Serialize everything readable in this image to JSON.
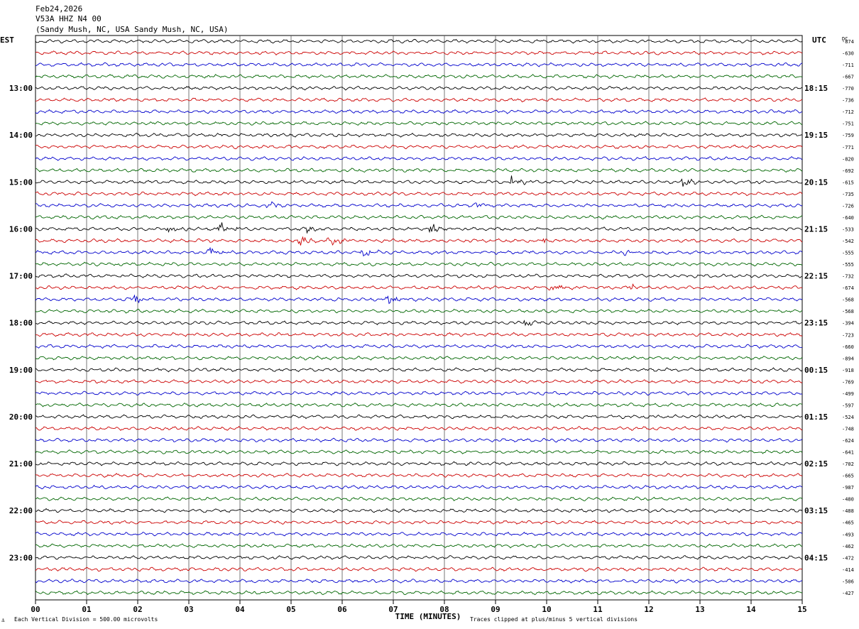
{
  "chart_data": {
    "type": "line",
    "header": {
      "date": "Feb24,2026",
      "station": "V53A HHZ N4 00",
      "location": "(Sandy Mush, NC, USA Sandy Mush, NC, USA)"
    },
    "left_tz": "EST",
    "right_tz": "UTC",
    "dc_label": "DC",
    "left_hour_labels": [
      "13:00",
      "14:00",
      "15:00",
      "16:00",
      "17:00",
      "18:00",
      "19:00",
      "20:00",
      "21:00",
      "22:00",
      "23:00"
    ],
    "right_hour_labels": [
      "18:15",
      "19:15",
      "20:15",
      "21:15",
      "22:15",
      "23:15",
      "00:15",
      "01:15",
      "02:15",
      "03:15",
      "04:15"
    ],
    "x_ticks": [
      "00",
      "01",
      "02",
      "03",
      "04",
      "05",
      "06",
      "07",
      "08",
      "09",
      "10",
      "11",
      "12",
      "13",
      "14",
      "15"
    ],
    "x_range": [
      0,
      15
    ],
    "xlabel": "TIME (MINUTES)",
    "footer_left": "Each Vertical Division =  500.00 microvolts",
    "footer_right": "Traces clipped at plus/minus 5 vertical divisions",
    "trace_colors": [
      "#000000",
      "#cc0000",
      "#0000cc",
      "#006600"
    ],
    "dc_offsets": [
      -874,
      -630,
      -711,
      -667,
      -770,
      -736,
      -712,
      -751,
      -759,
      -771,
      -820,
      -692,
      -615,
      -735,
      -726,
      -640,
      -533,
      -542,
      -555,
      -555,
      -732,
      -674,
      -568,
      -568,
      -394,
      -723,
      -660,
      -894,
      -918,
      -769,
      -499,
      -597,
      -524,
      -748,
      -624,
      -641,
      -702,
      -665,
      -987,
      -480,
      -488,
      -465,
      -493,
      -462,
      -472,
      -414,
      -506,
      -427
    ],
    "events": [
      {
        "trace": 12,
        "minute": 9.3,
        "amp": 9
      },
      {
        "trace": 12,
        "minute": 12.65,
        "amp": 11
      },
      {
        "trace": 14,
        "minute": 4.55,
        "amp": 6
      },
      {
        "trace": 14,
        "minute": 8.6,
        "amp": 8
      },
      {
        "trace": 16,
        "minute": 2.6,
        "amp": 9
      },
      {
        "trace": 16,
        "minute": 3.6,
        "amp": 12
      },
      {
        "trace": 16,
        "minute": 5.3,
        "amp": 7
      },
      {
        "trace": 16,
        "minute": 7.7,
        "amp": 9
      },
      {
        "trace": 17,
        "minute": 5.15,
        "amp": 10
      },
      {
        "trace": 17,
        "minute": 5.75,
        "amp": 10
      },
      {
        "trace": 17,
        "minute": 9.9,
        "amp": 4
      },
      {
        "trace": 18,
        "minute": 3.4,
        "amp": 9
      },
      {
        "trace": 18,
        "minute": 6.4,
        "amp": 8
      },
      {
        "trace": 18,
        "minute": 11.5,
        "amp": 5
      },
      {
        "trace": 21,
        "minute": 10.05,
        "amp": 7
      },
      {
        "trace": 21,
        "minute": 11.65,
        "amp": 6
      },
      {
        "trace": 22,
        "minute": 1.9,
        "amp": 7
      },
      {
        "trace": 22,
        "minute": 6.9,
        "amp": 9
      },
      {
        "trace": 24,
        "minute": 9.55,
        "amp": 5
      }
    ]
  }
}
